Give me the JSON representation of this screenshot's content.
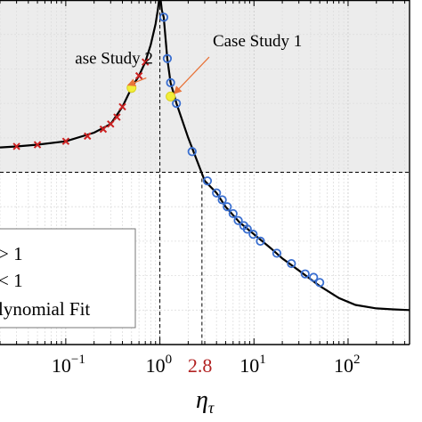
{
  "colors": {
    "shade": "#ececec",
    "curve": "#000000",
    "circle_marker": "#3a6fd0",
    "cross_marker": "#cc2222",
    "highlight": "#f2ee3a",
    "arrow": "#e8743a",
    "highlight_tick": "#b22222"
  },
  "chart_data": {
    "type": "line",
    "xscale": "log",
    "xlabel": "η",
    "xlabel_subscript": "τ",
    "xlim": [
      0.02,
      450
    ],
    "ylim": [
      0,
      1
    ],
    "x_ticks": [
      {
        "value": 0.1,
        "base": "10",
        "exp": "−1"
      },
      {
        "value": 1,
        "base": "10",
        "exp": "0"
      },
      {
        "value": 10,
        "base": "10",
        "exp": "1"
      },
      {
        "value": 100,
        "base": "10",
        "exp": "2"
      }
    ],
    "highlight_tick": {
      "value": 2.8,
      "label": "2.8"
    },
    "threshold_y": 0.5,
    "series": [
      {
        "marker": "cross",
        "x": [
          0.03,
          0.05,
          0.1,
          0.17,
          0.25,
          0.3,
          0.35,
          0.4,
          0.5,
          0.6,
          0.7
        ],
        "y": [
          0.575,
          0.58,
          0.59,
          0.605,
          0.625,
          0.64,
          0.66,
          0.69,
          0.745,
          0.78,
          0.82
        ]
      },
      {
        "marker": "circle",
        "x": [
          1.1,
          1.2,
          1.3,
          1.5,
          2.2,
          3.2,
          4,
          4.6,
          5.2,
          6,
          6.8,
          7.8,
          8.5,
          9.8,
          11.7,
          17.5,
          25,
          35,
          43,
          50
        ],
        "y": [
          0.95,
          0.83,
          0.76,
          0.7,
          0.56,
          0.475,
          0.44,
          0.42,
          0.4,
          0.38,
          0.36,
          0.345,
          0.335,
          0.32,
          0.3,
          0.265,
          0.235,
          0.205,
          0.195,
          0.18
        ]
      }
    ],
    "fit_curve": {
      "x": [
        0.02,
        0.03,
        0.05,
        0.1,
        0.2,
        0.3,
        0.4,
        0.5,
        0.6,
        0.7,
        0.8,
        0.9,
        0.95,
        1,
        1.05,
        1.1,
        1.2,
        1.3,
        1.5,
        2,
        3,
        4,
        5,
        7,
        10,
        15,
        20,
        30,
        50,
        80,
        120,
        200,
        300,
        450
      ],
      "y": [
        0.572,
        0.575,
        0.58,
        0.59,
        0.615,
        0.64,
        0.69,
        0.745,
        0.78,
        0.82,
        0.87,
        0.93,
        0.97,
        1.02,
        0.97,
        0.95,
        0.83,
        0.76,
        0.7,
        0.6,
        0.475,
        0.44,
        0.4,
        0.355,
        0.32,
        0.28,
        0.25,
        0.215,
        0.17,
        0.135,
        0.115,
        0.105,
        0.102,
        0.1
      ]
    },
    "highlight_points": [
      {
        "x": 0.5,
        "y": 0.745
      },
      {
        "x": 1.3,
        "y": 0.72
      }
    ],
    "annotations": [
      {
        "text": "Case Study 1",
        "anchor_x": 1.3,
        "anchor_y": 0.72,
        "label_x": 3.2,
        "label_y": 0.85
      },
      {
        "text": "ase Study 2",
        "anchor_x": 0.5,
        "anchor_y": 0.745,
        "label_x": 0.3,
        "label_y": 0.81
      }
    ],
    "legend": {
      "placement": "bottom-left",
      "entries": [
        "> 1",
        "< 1",
        "lynomial Fit"
      ]
    }
  }
}
